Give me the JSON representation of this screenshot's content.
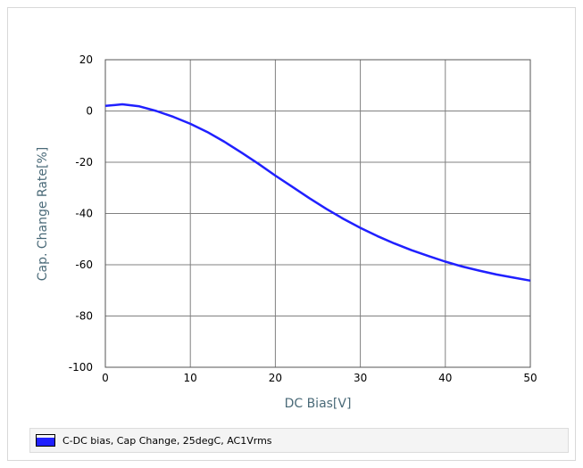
{
  "chart_data": {
    "type": "line",
    "xlabel": "DC Bias[V]",
    "ylabel": "Cap. Change Rate[%]",
    "xlim": [
      0,
      50
    ],
    "ylim": [
      -100,
      20
    ],
    "xticks": [
      0,
      10,
      20,
      30,
      40,
      50
    ],
    "yticks": [
      20,
      0,
      -20,
      -40,
      -60,
      -80,
      -100
    ],
    "grid": true,
    "legend_position": "bottom",
    "series": [
      {
        "name": "C-DC bias, Cap Change, 25degC, AC1Vrms",
        "color": "#2020ff",
        "x": [
          0,
          2,
          4,
          6,
          8,
          10,
          12,
          14,
          16,
          18,
          20,
          22,
          24,
          26,
          28,
          30,
          32,
          34,
          36,
          38,
          40,
          42,
          44,
          46,
          48,
          50
        ],
        "y": [
          2,
          2.6,
          1.8,
          0,
          -2.3,
          -5,
          -8.2,
          -12,
          -16.2,
          -20.6,
          -25.2,
          -29.6,
          -34,
          -38.2,
          -42.1,
          -45.6,
          -48.8,
          -51.7,
          -54.3,
          -56.6,
          -58.8,
          -60.7,
          -62.3,
          -63.8,
          -65,
          -66.2
        ]
      }
    ]
  },
  "legend": {
    "label": "C-DC bias, Cap Change, 25degC, AC1Vrms",
    "swatch_color": "#2020ff"
  }
}
